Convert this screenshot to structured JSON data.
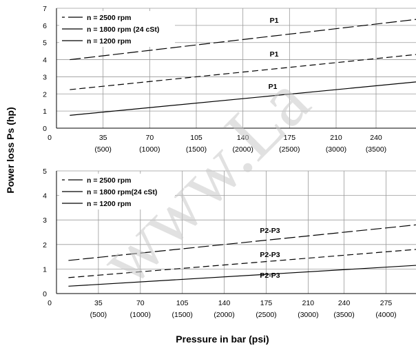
{
  "chart_data": [
    {
      "type": "line",
      "ylabel": "Power loss Ps (hp)",
      "xlabel": "Pressure in bar (psi)",
      "xlim": [
        0,
        270
      ],
      "ylim": [
        0,
        7
      ],
      "y_ticks": [
        "0",
        "1",
        "2",
        "3",
        "4",
        "5",
        "6",
        "7"
      ],
      "x_ticks": [
        {
          "value": 0,
          "bar": "0",
          "psi": ""
        },
        {
          "value": 35,
          "bar": "35",
          "psi": "(500)"
        },
        {
          "value": 70,
          "bar": "70",
          "psi": "(1000)"
        },
        {
          "value": 105,
          "bar": "105",
          "psi": "(1500)"
        },
        {
          "value": 140,
          "bar": "140",
          "psi": "(2000)"
        },
        {
          "value": 175,
          "bar": "175",
          "psi": "(2500)"
        },
        {
          "value": 210,
          "bar": "210",
          "psi": "(3000)"
        },
        {
          "value": 240,
          "bar": "240",
          "psi": "(3500)"
        }
      ],
      "grid": true,
      "legend_position": "top-left",
      "legend": [
        "n = 2500 rpm",
        "n = 1800 rpm (24 cSt)",
        "n = 1200 rpm"
      ],
      "series": [
        {
          "name": "n = 2500 rpm",
          "style": "long-dash",
          "label": "P1",
          "x": [
            10,
            270
          ],
          "y": [
            4.0,
            6.35
          ]
        },
        {
          "name": "n = 1800 rpm (24 cSt)",
          "style": "dash",
          "label": "P1",
          "x": [
            10,
            270
          ],
          "y": [
            2.25,
            4.3
          ]
        },
        {
          "name": "n = 1200 rpm",
          "style": "solid",
          "label": "P1",
          "x": [
            10,
            270
          ],
          "y": [
            0.75,
            2.7
          ]
        }
      ]
    },
    {
      "type": "line",
      "ylabel": "Power loss Ps (hp)",
      "xlabel": "Pressure in bar (psi)",
      "xlim": [
        0,
        300
      ],
      "ylim": [
        0,
        5
      ],
      "y_ticks": [
        "0",
        "1",
        "2",
        "3",
        "4",
        "5"
      ],
      "x_ticks": [
        {
          "value": 0,
          "bar": "0",
          "psi": ""
        },
        {
          "value": 35,
          "bar": "35",
          "psi": "(500)"
        },
        {
          "value": 70,
          "bar": "70",
          "psi": "(1000)"
        },
        {
          "value": 105,
          "bar": "105",
          "psi": "(1500)"
        },
        {
          "value": 140,
          "bar": "140",
          "psi": "(2000)"
        },
        {
          "value": 175,
          "bar": "175",
          "psi": "(2500)"
        },
        {
          "value": 210,
          "bar": "210",
          "psi": "(3000)"
        },
        {
          "value": 240,
          "bar": "240",
          "psi": "(3500)"
        },
        {
          "value": 275,
          "bar": "275",
          "psi": "(4000)"
        }
      ],
      "grid": true,
      "legend_position": "top-left",
      "legend": [
        "n = 2500 rpm",
        "n = 1800 rpm(24 cSt)",
        "n = 1200 rpm"
      ],
      "series": [
        {
          "name": "n = 2500 rpm",
          "style": "long-dash",
          "label": "P2-P3",
          "x": [
            10,
            300
          ],
          "y": [
            1.35,
            2.8
          ]
        },
        {
          "name": "n = 1800 rpm(24 cSt)",
          "style": "dash",
          "label": "P2-P3",
          "x": [
            10,
            300
          ],
          "y": [
            0.65,
            1.8
          ]
        },
        {
          "name": "n = 1200 rpm",
          "style": "solid",
          "label": "P2-P3",
          "x": [
            10,
            300
          ],
          "y": [
            0.3,
            1.15
          ]
        }
      ]
    }
  ],
  "watermark": "www.La"
}
